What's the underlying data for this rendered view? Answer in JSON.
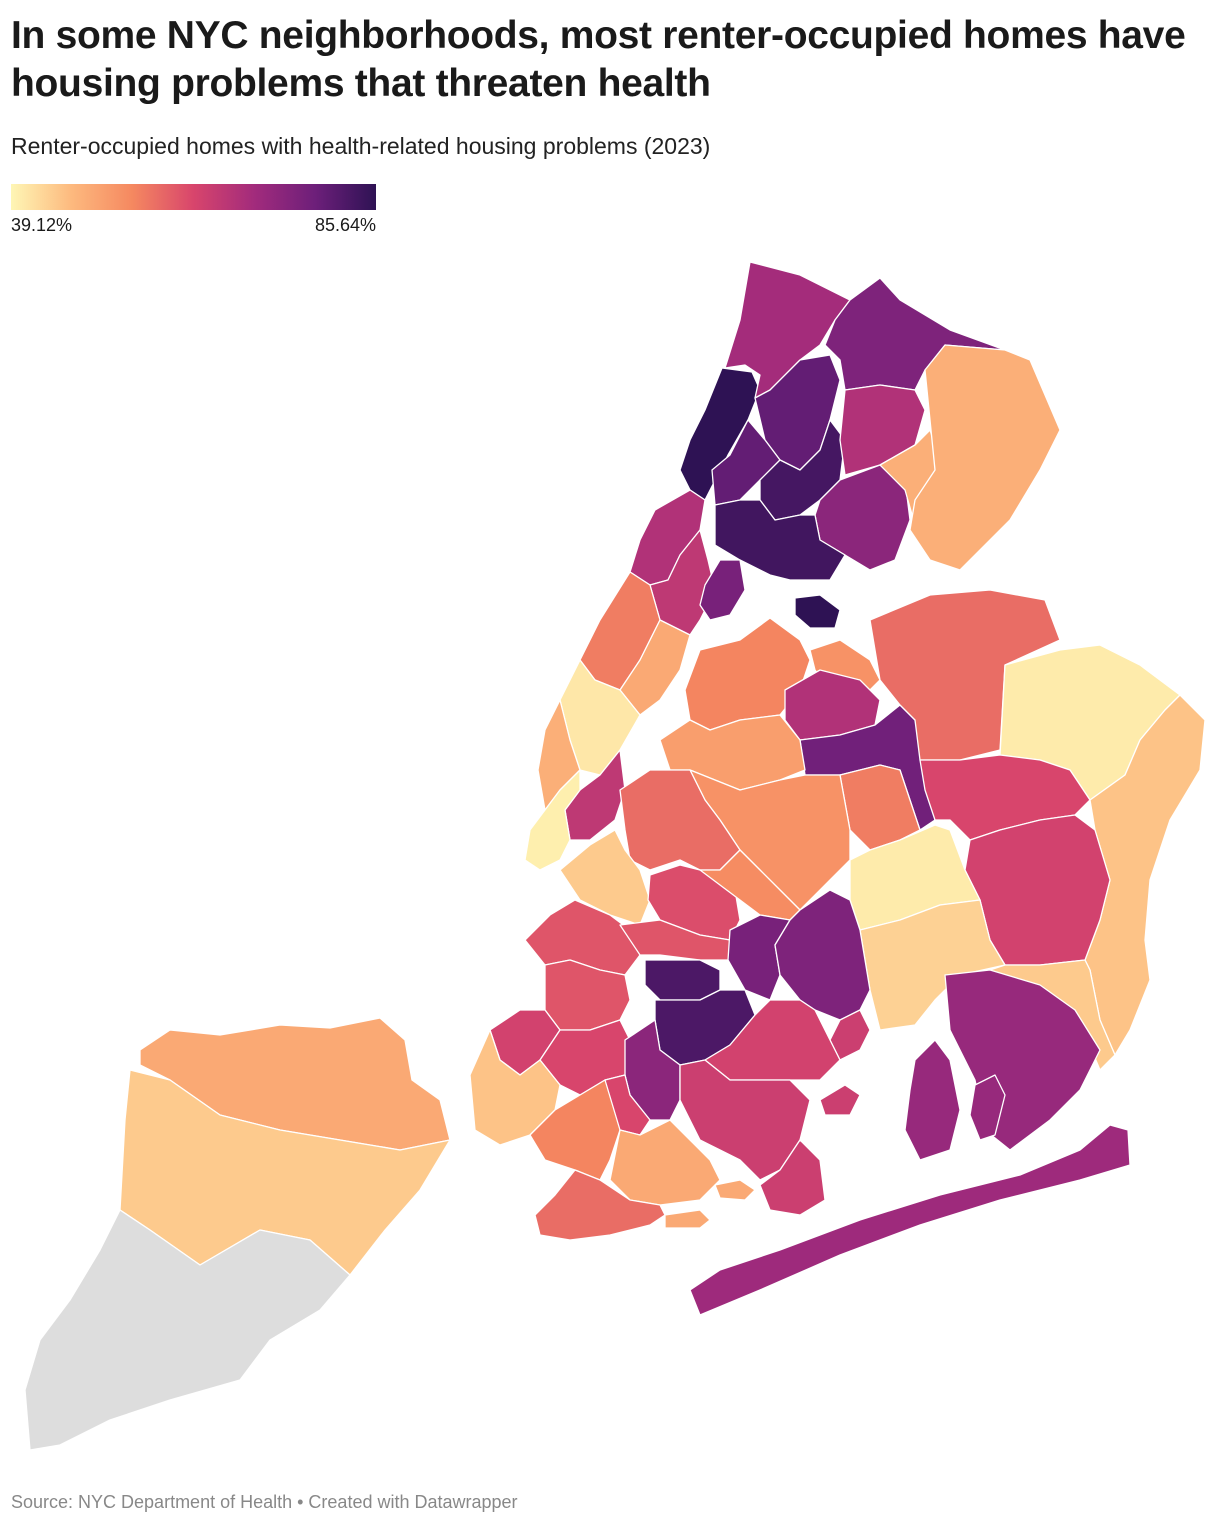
{
  "title": "In some NYC neighborhoods, most renter-occupied homes have housing problems that threaten health",
  "subtitle": "Renter-occupied homes with health-related housing problems (2023)",
  "legend": {
    "min_label": "39.12%",
    "max_label": "85.64%",
    "min_value": 39.12,
    "max_value": 85.64,
    "gradient_colors": [
      "#fef6b5",
      "#fdb97e",
      "#f58860",
      "#d8456c",
      "#a22b7c",
      "#6d1f7a",
      "#2e1254"
    ],
    "no_data_color": "#dddddd"
  },
  "footer": "Source: NYC Department of Health • Created with Datawrapper",
  "map_data": {
    "type": "choropleth",
    "color_scale": "sequential yellow-orange-purple",
    "no_data_region": "Staten Island (south)"
  }
}
